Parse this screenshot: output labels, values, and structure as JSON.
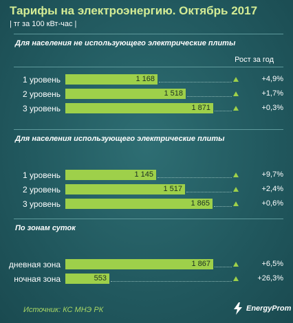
{
  "header": {
    "title": "Тарифы на электроэнергию. Октябрь 2017",
    "subtitle": "| тг за 100 кВт-час |"
  },
  "growth_header": "Рост за год",
  "colors": {
    "bar": "#9ed04a",
    "background": "#21585e",
    "title": "#d4ec95",
    "triangle": "#9ed04a"
  },
  "chart_data": {
    "type": "bar",
    "orientation": "horizontal",
    "xlim": [
      0,
      2000
    ],
    "groups": [
      {
        "title": "Для населения не использующего электрические плиты",
        "categories": [
          "1 уровень",
          "2 уровень",
          "3 уровень"
        ],
        "values": [
          1168,
          1518,
          1871
        ],
        "value_labels": [
          "1 168",
          "1 518",
          "1 871"
        ],
        "growth": [
          "+4,9%",
          "+1,7%",
          "+0,3%"
        ]
      },
      {
        "title": "Для населения использующего электрические плиты",
        "categories": [
          "1 уровень",
          "2 уровень",
          "3 уровень"
        ],
        "values": [
          1145,
          1517,
          1865
        ],
        "value_labels": [
          "1 145",
          "1 517",
          "1 865"
        ],
        "growth": [
          "+9,7%",
          "+2,4%",
          "+0,6%"
        ]
      },
      {
        "title": "По зонам суток",
        "categories": [
          "дневная зона",
          "ночная зона"
        ],
        "values": [
          1867,
          553
        ],
        "value_labels": [
          "1 867",
          "553"
        ],
        "growth": [
          "+6,5%",
          "+26,3%"
        ]
      }
    ]
  },
  "footer": {
    "source": "Источник: КС МНЭ РК",
    "logo_text": "EnergyProm",
    "logo_icon": "lightning-bolt-icon"
  }
}
